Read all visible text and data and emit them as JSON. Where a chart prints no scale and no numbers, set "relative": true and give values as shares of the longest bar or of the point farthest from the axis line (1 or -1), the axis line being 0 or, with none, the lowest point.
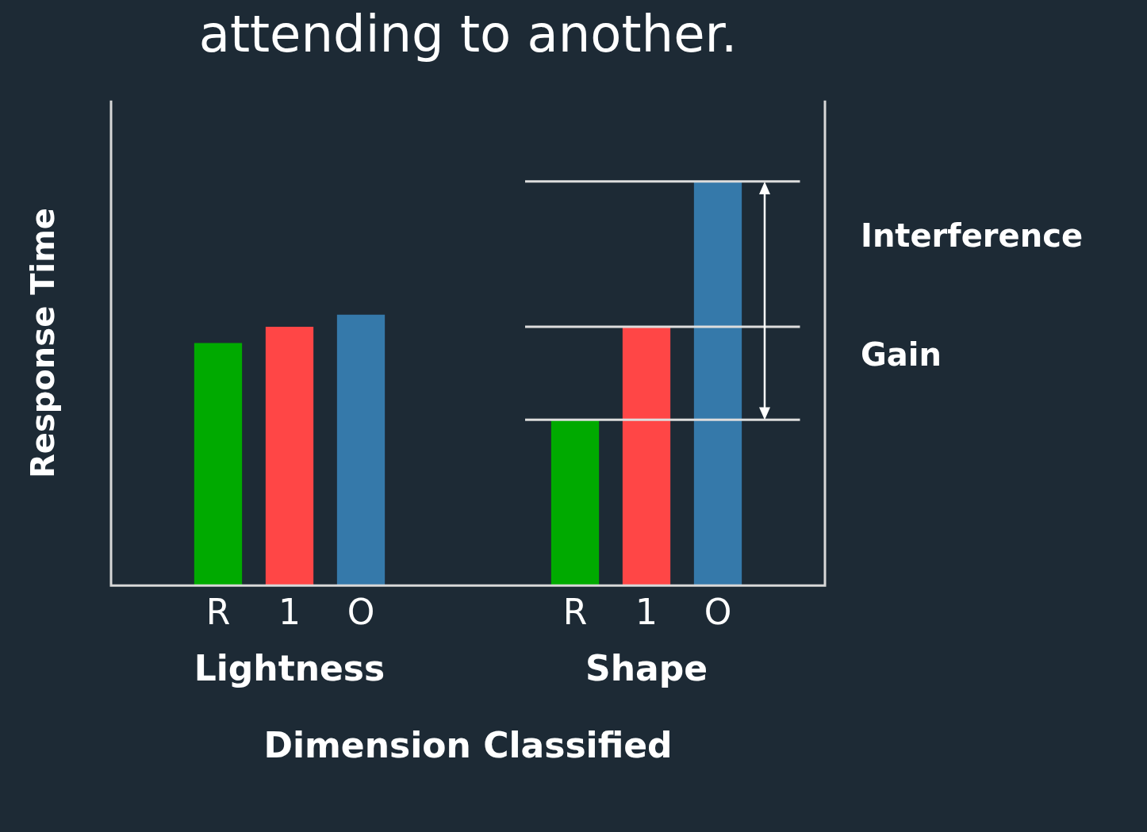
{
  "chart_data": {
    "type": "bar",
    "title": "attending to another.",
    "ylabel": "Response Time",
    "xlabel": "Dimension Classified",
    "relative": true,
    "categories": [
      null,
      "R",
      "1",
      "O",
      null,
      null,
      "R",
      "1",
      "O",
      null
    ],
    "values": [
      null,
      0.6,
      0.64,
      0.67,
      null,
      null,
      0.41,
      0.64,
      1,
      null
    ],
    "colors": [
      "#1d2a35",
      "#00aa00",
      "#ff4646",
      "#3579aa",
      "#1d2a35",
      "#1d2a35",
      "#00aa00",
      "#ff4646",
      "#3579aa",
      "#1d2a35"
    ],
    "ref_lines": [
      {
        "axis": "y",
        "value": 1,
        "color": "#dddddd"
      },
      {
        "axis": "y",
        "value": 0.64,
        "color": "#dddddd"
      },
      {
        "axis": "y",
        "value": 0.41,
        "color": "#dddddd"
      }
    ],
    "annotations": [
      "Lightness",
      "Shape",
      "Interference",
      "Gain"
    ],
    "legend": false,
    "grid": false
  }
}
